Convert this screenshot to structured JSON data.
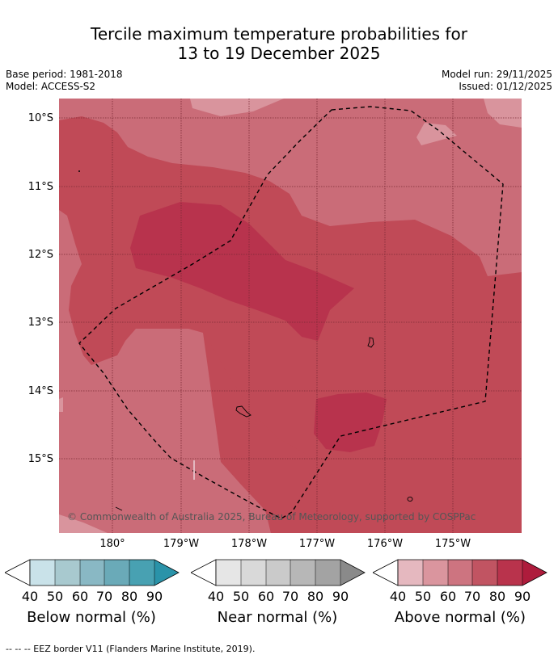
{
  "title_line1": "Tercile maximum temperature probabilities for",
  "title_line2": "13 to 19 December 2025",
  "base_period": "Base period: 1981-2018",
  "model": "Model: ACCESS-S2",
  "model_run": "Model run: 29/11/2025",
  "issued": "Issued: 01/12/2025",
  "lat_labels": [
    "10°S",
    "11°S",
    "12°S",
    "13°S",
    "14°S",
    "15°S"
  ],
  "lon_labels": [
    "180°",
    "179°W",
    "178°W",
    "177°W",
    "176°W",
    "175°W"
  ],
  "copyright": "© Commonwealth of Australia 2025, Bureau of Meteorology, supported by COSPPac",
  "legends": [
    {
      "title": "Below normal (%)",
      "colors": [
        "#c9e2e9",
        "#a8c9cf",
        "#89b8c4",
        "#6aaab8",
        "#48a1b2",
        "#2a93a9"
      ],
      "ticks": [
        "40",
        "50",
        "60",
        "70",
        "80",
        "90"
      ]
    },
    {
      "title": "Near normal (%)",
      "colors": [
        "#e6e6e6",
        "#d9d9d9",
        "#cacaca",
        "#b7b7b7",
        "#a3a3a3",
        "#8a8a8a"
      ],
      "ticks": [
        "40",
        "50",
        "60",
        "70",
        "80",
        "90"
      ]
    },
    {
      "title": "Above normal (%)",
      "colors": [
        "#e5b8bf",
        "#da959e",
        "#cd7480",
        "#c15462",
        "#b9334c",
        "#ae1c3c"
      ],
      "ticks": [
        "40",
        "50",
        "60",
        "70",
        "80",
        "90"
      ]
    }
  ],
  "colors": {
    "above_50": "#d9949d",
    "above_60": "#ca6c78",
    "above_70": "#c04a57",
    "above_80": "#b8334d"
  },
  "footnote": "--  --  -- EEZ border V11 (Flanders Marine Institute, 2019)."
}
